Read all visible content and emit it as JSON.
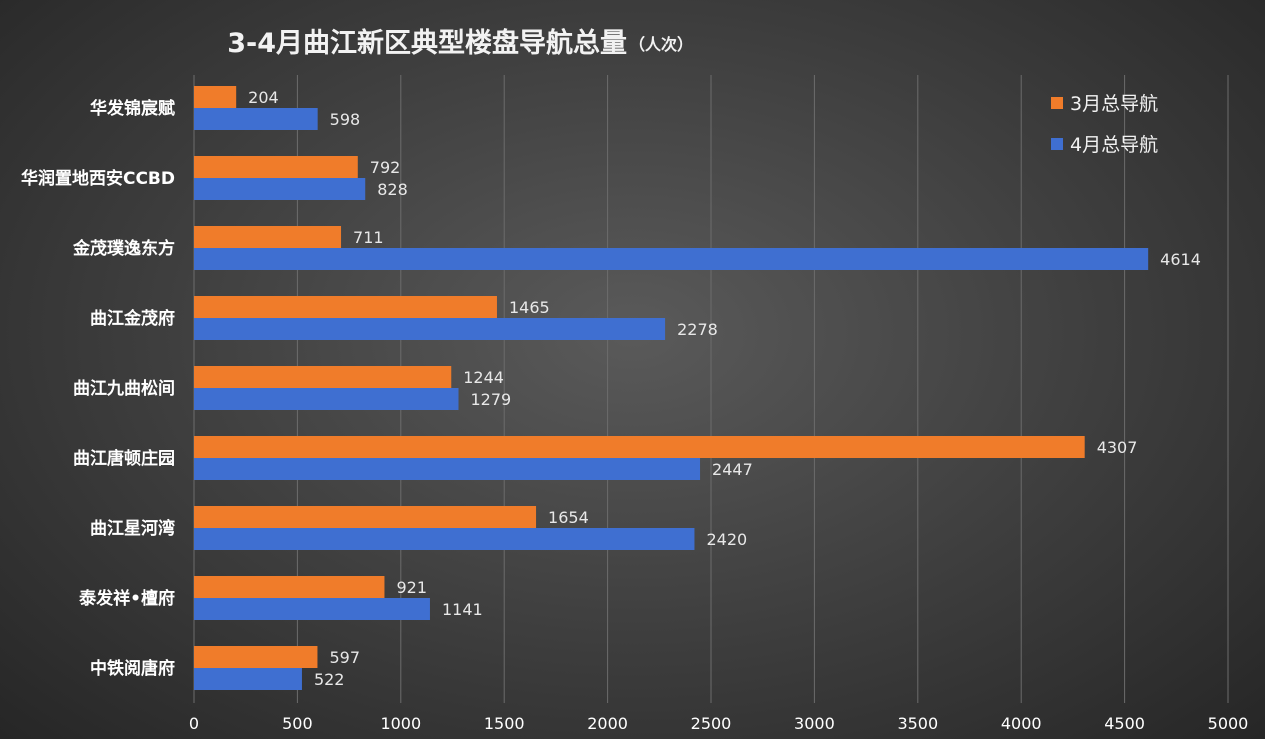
{
  "chart_data": {
    "type": "bar",
    "orientation": "horizontal",
    "title": "3-4月曲江新区典型楼盘导航总量",
    "title_suffix": "（人次）",
    "categories": [
      "华发锦宸赋",
      "华润置地西安CCBD",
      "金茂璞逸东方",
      "曲江金茂府",
      "曲江九曲松间",
      "曲江唐顿庄园",
      "曲江星河湾",
      "泰发祥•檀府",
      "中铁阅唐府"
    ],
    "series": [
      {
        "name": "3月总导航",
        "color": "#f07c2a",
        "values": [
          204,
          792,
          711,
          1465,
          1244,
          4307,
          1654,
          921,
          597
        ]
      },
      {
        "name": "4月总导航",
        "color": "#3f6fd1",
        "values": [
          598,
          828,
          4614,
          2278,
          1279,
          2447,
          2420,
          1141,
          522
        ]
      }
    ],
    "xlim": [
      0,
      5000
    ],
    "xticks": [
      0,
      500,
      1000,
      1500,
      2000,
      2500,
      3000,
      3500,
      4000,
      4500,
      5000
    ],
    "grid": true,
    "legend_position": "top-right"
  }
}
